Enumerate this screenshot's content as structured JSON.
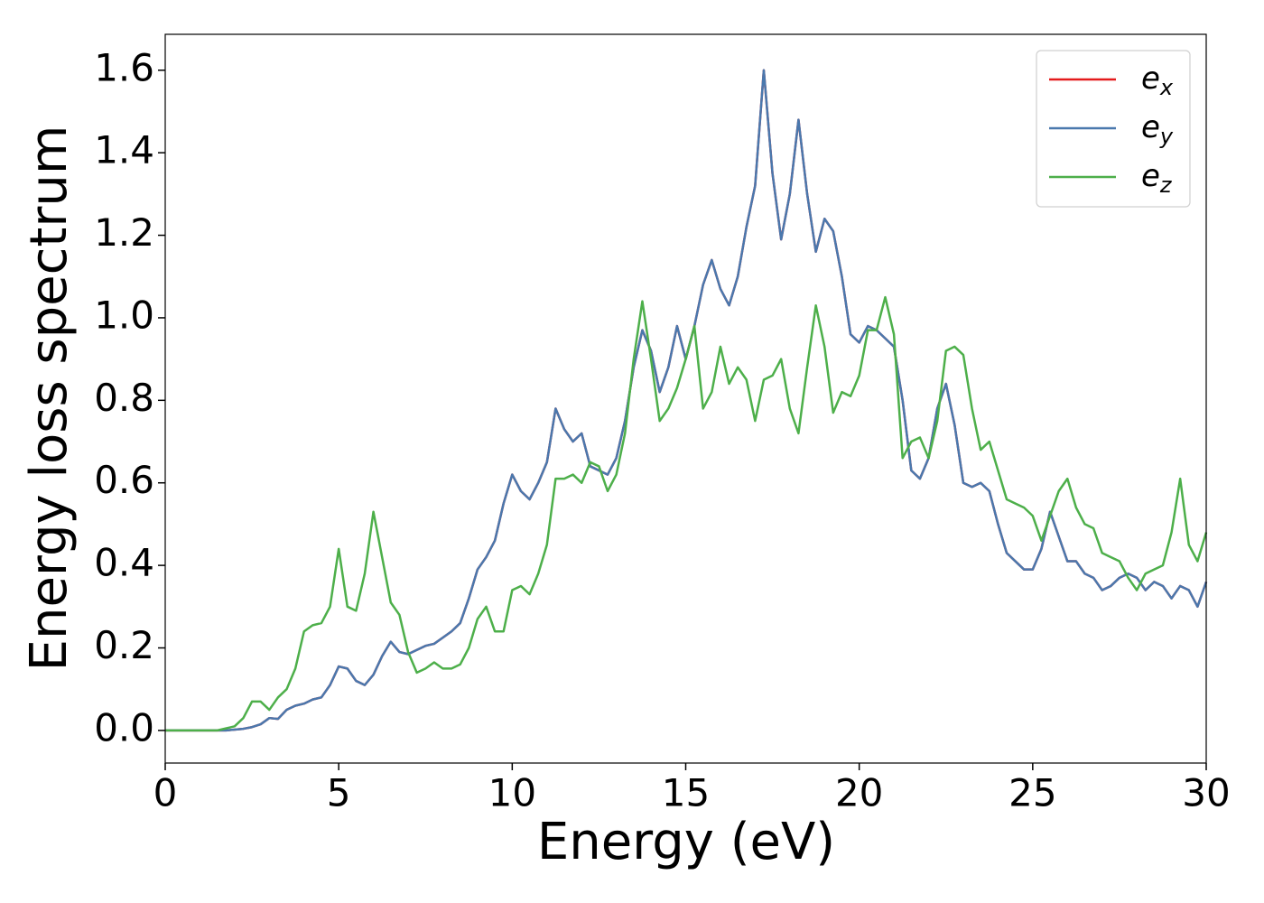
{
  "chart_data": {
    "type": "line",
    "xlabel": "Energy (eV)",
    "ylabel": "Energy loss spectrum",
    "xlim": [
      0,
      30
    ],
    "ylim": [
      -0.079,
      1.687
    ],
    "xticks": [
      0,
      5,
      10,
      15,
      20,
      25,
      30
    ],
    "yticks": [
      {
        "value": 0,
        "label": "0.0"
      },
      0.2,
      0.4,
      0.6,
      0.8,
      {
        "value": 1,
        "label": "1.0"
      },
      1.2,
      1.4,
      1.6
    ],
    "legend": "upper right",
    "x": [
      0,
      0.25,
      0.5,
      0.75,
      1,
      1.25,
      1.5,
      1.75,
      2,
      2.25,
      2.5,
      2.75,
      3,
      3.25,
      3.5,
      3.75,
      4,
      4.25,
      4.5,
      4.75,
      5,
      5.25,
      5.5,
      5.75,
      6,
      6.25,
      6.5,
      6.75,
      7,
      7.25,
      7.5,
      7.75,
      8,
      8.25,
      8.5,
      8.75,
      9,
      9.25,
      9.5,
      9.75,
      10,
      10.25,
      10.5,
      10.75,
      11,
      11.25,
      11.5,
      11.75,
      12,
      12.25,
      12.5,
      12.75,
      13,
      13.25,
      13.5,
      13.75,
      14,
      14.25,
      14.5,
      14.75,
      15,
      15.25,
      15.5,
      15.75,
      16,
      16.25,
      16.5,
      16.75,
      17,
      17.25,
      17.5,
      17.75,
      18,
      18.25,
      18.5,
      18.75,
      19,
      19.25,
      19.5,
      19.75,
      20,
      20.25,
      20.5,
      20.75,
      21,
      21.25,
      21.5,
      21.75,
      22,
      22.25,
      22.5,
      22.75,
      23,
      23.25,
      23.5,
      23.75,
      24,
      24.25,
      24.5,
      24.75,
      25,
      25.25,
      25.5,
      25.75,
      26,
      26.25,
      26.5,
      26.75,
      27,
      27.25,
      27.5,
      27.75,
      28,
      28.25,
      28.5,
      28.75,
      29,
      29.25,
      29.5,
      29.75,
      30
    ],
    "series": [
      {
        "name": "e_x",
        "color": "#e41a1c",
        "values": [
          0,
          0,
          0,
          0,
          0,
          0,
          0,
          0,
          0.002,
          0.004,
          0.008,
          0.015,
          0.03,
          0.028,
          0.05,
          0.06,
          0.065,
          0.075,
          0.08,
          0.11,
          0.155,
          0.15,
          0.12,
          0.11,
          0.135,
          0.18,
          0.215,
          0.19,
          0.185,
          0.195,
          0.205,
          0.21,
          0.225,
          0.24,
          0.26,
          0.32,
          0.39,
          0.42,
          0.46,
          0.55,
          0.62,
          0.58,
          0.56,
          0.6,
          0.65,
          0.78,
          0.73,
          0.7,
          0.72,
          0.64,
          0.63,
          0.62,
          0.66,
          0.75,
          0.88,
          0.97,
          0.92,
          0.82,
          0.88,
          0.98,
          0.9,
          0.98,
          1.08,
          1.14,
          1.07,
          1.03,
          1.1,
          1.22,
          1.32,
          1.6,
          1.35,
          1.19,
          1.3,
          1.48,
          1.3,
          1.16,
          1.24,
          1.21,
          1.1,
          0.96,
          0.94,
          0.98,
          0.97,
          0.95,
          0.93,
          0.8,
          0.63,
          0.61,
          0.66,
          0.78,
          0.84,
          0.74,
          0.6,
          0.59,
          0.6,
          0.58,
          0.5,
          0.43,
          0.41,
          0.39,
          0.39,
          0.44,
          0.53,
          0.47,
          0.41,
          0.41,
          0.38,
          0.37,
          0.34,
          0.35,
          0.37,
          0.38,
          0.37,
          0.34,
          0.36,
          0.35,
          0.32,
          0.35,
          0.34,
          0.3,
          0.36
        ]
      },
      {
        "name": "e_y",
        "color": "#4a78ad",
        "values": [
          0,
          0,
          0,
          0,
          0,
          0,
          0,
          0,
          0.002,
          0.004,
          0.008,
          0.015,
          0.03,
          0.028,
          0.05,
          0.06,
          0.065,
          0.075,
          0.08,
          0.11,
          0.155,
          0.15,
          0.12,
          0.11,
          0.135,
          0.18,
          0.215,
          0.19,
          0.185,
          0.195,
          0.205,
          0.21,
          0.225,
          0.24,
          0.26,
          0.32,
          0.39,
          0.42,
          0.46,
          0.55,
          0.62,
          0.58,
          0.56,
          0.6,
          0.65,
          0.78,
          0.73,
          0.7,
          0.72,
          0.64,
          0.63,
          0.62,
          0.66,
          0.75,
          0.88,
          0.97,
          0.92,
          0.82,
          0.88,
          0.98,
          0.9,
          0.98,
          1.08,
          1.14,
          1.07,
          1.03,
          1.1,
          1.22,
          1.32,
          1.6,
          1.35,
          1.19,
          1.3,
          1.48,
          1.3,
          1.16,
          1.24,
          1.21,
          1.1,
          0.96,
          0.94,
          0.98,
          0.97,
          0.95,
          0.93,
          0.8,
          0.63,
          0.61,
          0.66,
          0.78,
          0.84,
          0.74,
          0.6,
          0.59,
          0.6,
          0.58,
          0.5,
          0.43,
          0.41,
          0.39,
          0.39,
          0.44,
          0.53,
          0.47,
          0.41,
          0.41,
          0.38,
          0.37,
          0.34,
          0.35,
          0.37,
          0.38,
          0.37,
          0.34,
          0.36,
          0.35,
          0.32,
          0.35,
          0.34,
          0.3,
          0.36
        ]
      },
      {
        "name": "e_z",
        "color": "#4daf4a",
        "values": [
          0,
          0,
          0,
          0,
          0,
          0,
          0,
          0.005,
          0.01,
          0.03,
          0.07,
          0.07,
          0.05,
          0.08,
          0.1,
          0.15,
          0.24,
          0.255,
          0.26,
          0.3,
          0.44,
          0.3,
          0.29,
          0.38,
          0.53,
          0.42,
          0.31,
          0.28,
          0.19,
          0.14,
          0.15,
          0.165,
          0.15,
          0.15,
          0.16,
          0.2,
          0.27,
          0.3,
          0.24,
          0.24,
          0.34,
          0.35,
          0.33,
          0.38,
          0.45,
          0.61,
          0.61,
          0.62,
          0.6,
          0.65,
          0.64,
          0.58,
          0.62,
          0.72,
          0.9,
          1.04,
          0.9,
          0.75,
          0.78,
          0.83,
          0.9,
          0.98,
          0.78,
          0.82,
          0.93,
          0.84,
          0.88,
          0.85,
          0.75,
          0.85,
          0.86,
          0.9,
          0.78,
          0.72,
          0.88,
          1.03,
          0.93,
          0.77,
          0.82,
          0.81,
          0.86,
          0.97,
          0.97,
          1.05,
          0.96,
          0.66,
          0.7,
          0.71,
          0.66,
          0.75,
          0.92,
          0.93,
          0.91,
          0.78,
          0.68,
          0.7,
          0.63,
          0.56,
          0.55,
          0.54,
          0.52,
          0.46,
          0.52,
          0.58,
          0.61,
          0.54,
          0.5,
          0.49,
          0.43,
          0.42,
          0.41,
          0.37,
          0.34,
          0.38,
          0.39,
          0.4,
          0.48,
          0.61,
          0.45,
          0.41,
          0.48
        ]
      }
    ]
  }
}
